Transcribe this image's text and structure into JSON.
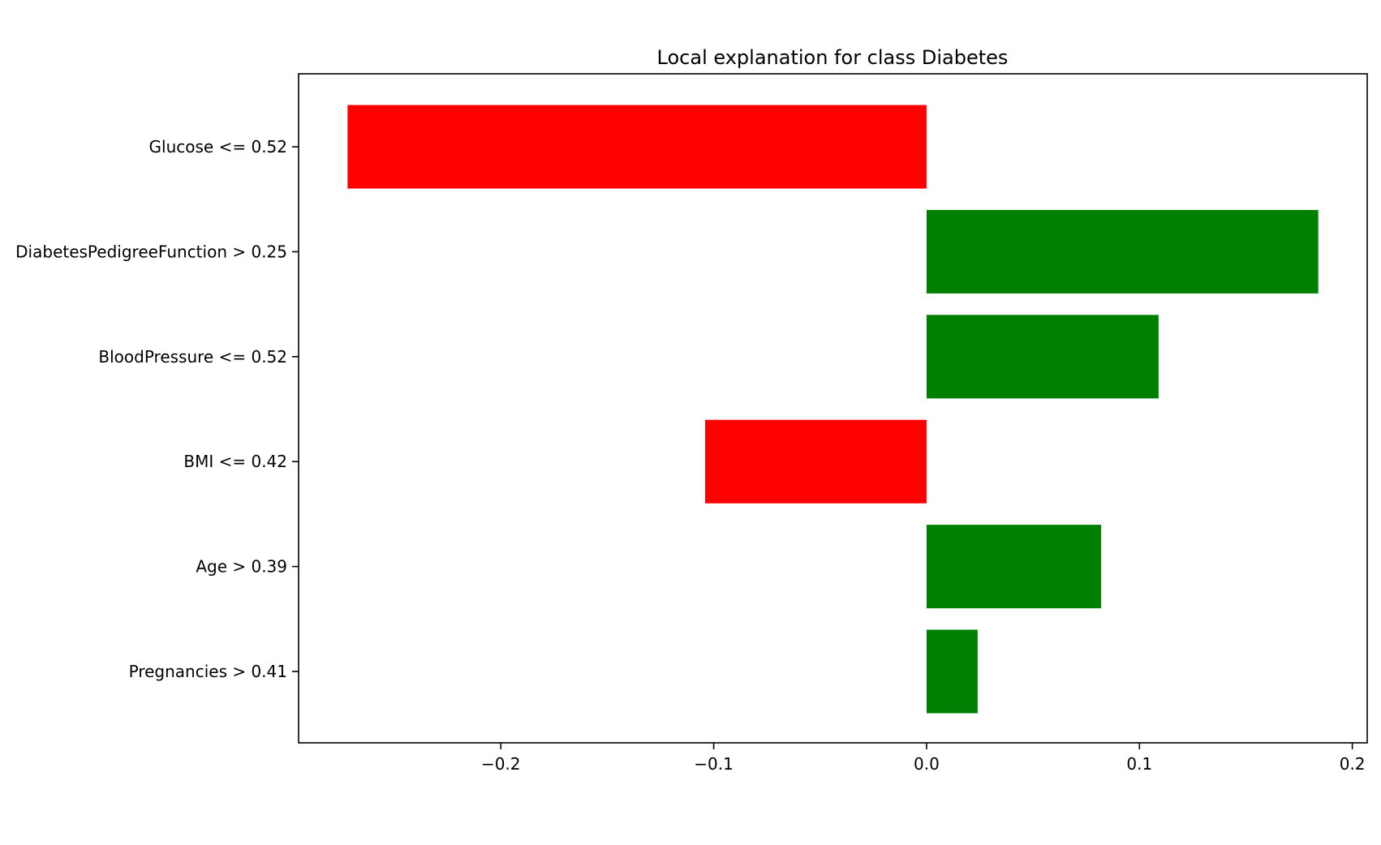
{
  "chart_data": {
    "type": "bar",
    "orientation": "horizontal",
    "title": "Local explanation for class Diabetes",
    "xlabel": "",
    "ylabel": "",
    "categories": [
      "Glucose <= 0.52",
      "DiabetesPedigreeFunction > 0.25",
      "BloodPressure <= 0.52",
      "BMI <= 0.42",
      "Age > 0.39",
      "Pregnancies > 0.41"
    ],
    "values": [
      -0.272,
      0.184,
      0.109,
      -0.104,
      0.082,
      0.024
    ],
    "xlim": [
      -0.295,
      0.207
    ],
    "xticks": [
      -0.2,
      -0.1,
      0.0,
      0.1,
      0.2
    ],
    "xtick_labels": [
      "−0.2",
      "−0.1",
      "0.0",
      "0.1",
      "0.2"
    ],
    "grid": false,
    "colors": {
      "positive": "#008000",
      "negative": "#ff0000",
      "axis": "#000000"
    }
  }
}
